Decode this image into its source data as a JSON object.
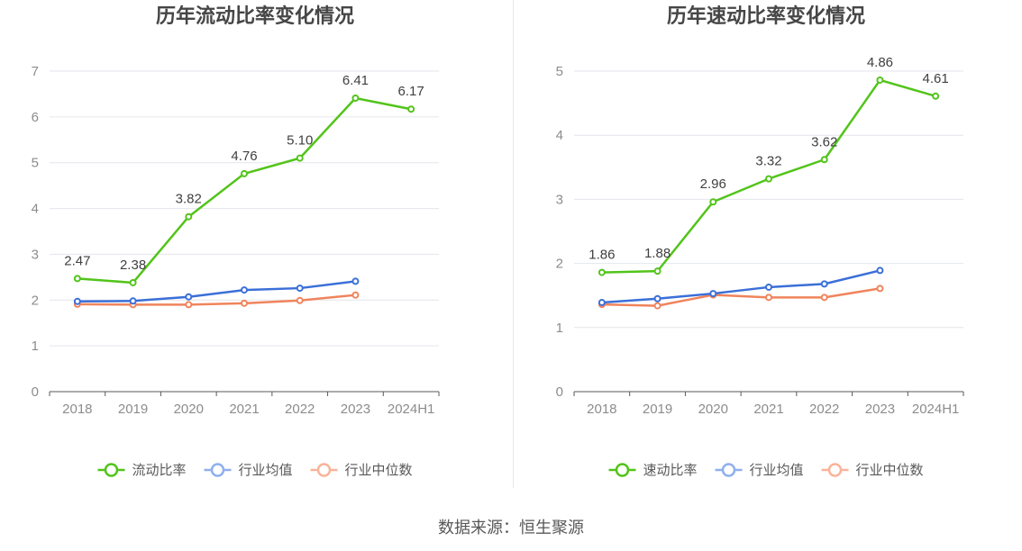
{
  "charts": [
    {
      "title": "历年流动比率变化情况",
      "type": "line",
      "categories": [
        "2018",
        "2019",
        "2020",
        "2021",
        "2022",
        "2023",
        "2024H1"
      ],
      "ylim": [
        0,
        7
      ],
      "yticks": [
        "0",
        "1",
        "2",
        "3",
        "4",
        "5",
        "6",
        "7"
      ],
      "series": [
        {
          "name": "流动比率",
          "color": "#52c41a",
          "values": [
            2.47,
            2.38,
            3.82,
            4.76,
            5.1,
            6.41,
            6.17
          ],
          "labels": [
            "2.47",
            "2.38",
            "3.82",
            "4.76",
            "5.10",
            "6.41",
            "6.17"
          ]
        },
        {
          "name": "行业均值",
          "color": "#3a6fd8",
          "values": [
            1.97,
            1.98,
            2.07,
            2.22,
            2.26,
            2.41,
            null
          ]
        },
        {
          "name": "行业中位数",
          "color": "#f0845c",
          "values": [
            1.91,
            1.9,
            1.9,
            1.93,
            1.99,
            2.11,
            null
          ]
        }
      ],
      "legend": [
        {
          "label": "流动比率",
          "color": "#52c41a"
        },
        {
          "label": "行业均值",
          "color": "#8fb0ec"
        },
        {
          "label": "行业中位数",
          "color": "#f9b49a"
        }
      ]
    },
    {
      "title": "历年速动比率变化情况",
      "type": "line",
      "categories": [
        "2018",
        "2019",
        "2020",
        "2021",
        "2022",
        "2023",
        "2024H1"
      ],
      "ylim": [
        0,
        5
      ],
      "yticks": [
        "0",
        "1",
        "2",
        "3",
        "4",
        "5"
      ],
      "series": [
        {
          "name": "速动比率",
          "color": "#52c41a",
          "values": [
            1.86,
            1.88,
            2.96,
            3.32,
            3.62,
            4.86,
            4.61
          ],
          "labels": [
            "1.86",
            "1.88",
            "2.96",
            "3.32",
            "3.62",
            "4.86",
            "4.61"
          ]
        },
        {
          "name": "行业均值",
          "color": "#3a6fd8",
          "values": [
            1.39,
            1.45,
            1.53,
            1.63,
            1.68,
            1.89,
            null
          ]
        },
        {
          "name": "行业中位数",
          "color": "#f0845c",
          "values": [
            1.36,
            1.34,
            1.51,
            1.47,
            1.47,
            1.61,
            null
          ]
        }
      ],
      "legend": [
        {
          "label": "速动比率",
          "color": "#52c41a"
        },
        {
          "label": "行业均值",
          "color": "#8fb0ec"
        },
        {
          "label": "行业中位数",
          "color": "#f9b49a"
        }
      ]
    }
  ],
  "footer": {
    "source": "数据来源：恒生聚源"
  }
}
